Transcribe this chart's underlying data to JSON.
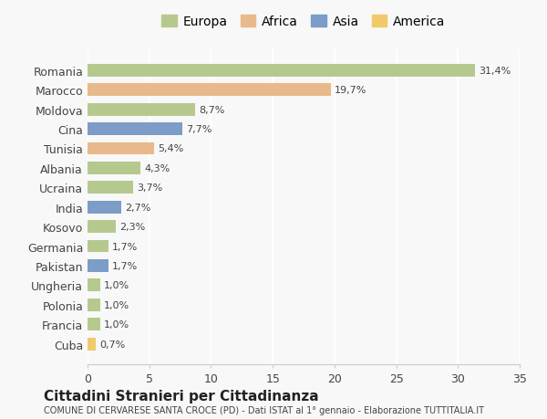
{
  "countries": [
    "Romania",
    "Marocco",
    "Moldova",
    "Cina",
    "Tunisia",
    "Albania",
    "Ucraina",
    "India",
    "Kosovo",
    "Germania",
    "Pakistan",
    "Ungheria",
    "Polonia",
    "Francia",
    "Cuba"
  ],
  "values": [
    31.4,
    19.7,
    8.7,
    7.7,
    5.4,
    4.3,
    3.7,
    2.7,
    2.3,
    1.7,
    1.7,
    1.0,
    1.0,
    1.0,
    0.7
  ],
  "labels": [
    "31,4%",
    "19,7%",
    "8,7%",
    "7,7%",
    "5,4%",
    "4,3%",
    "3,7%",
    "2,7%",
    "2,3%",
    "1,7%",
    "1,7%",
    "1,0%",
    "1,0%",
    "1,0%",
    "0,7%"
  ],
  "continents": [
    "Europa",
    "Africa",
    "Europa",
    "Asia",
    "Africa",
    "Europa",
    "Europa",
    "Asia",
    "Europa",
    "Europa",
    "Asia",
    "Europa",
    "Europa",
    "Europa",
    "America"
  ],
  "colors": {
    "Europa": "#b5c98e",
    "Africa": "#e8b98a",
    "Asia": "#7b9dc7",
    "America": "#f0c96a"
  },
  "legend_order": [
    "Europa",
    "Africa",
    "Asia",
    "America"
  ],
  "title": "Cittadini Stranieri per Cittadinanza",
  "subtitle": "COMUNE DI CERVARESE SANTA CROCE (PD) - Dati ISTAT al 1° gennaio - Elaborazione TUTTITALIA.IT",
  "xlim": [
    0,
    35
  ],
  "xticks": [
    0,
    5,
    10,
    15,
    20,
    25,
    30,
    35
  ],
  "background_color": "#f8f8f8",
  "grid_color": "#ffffff",
  "bar_height": 0.65
}
